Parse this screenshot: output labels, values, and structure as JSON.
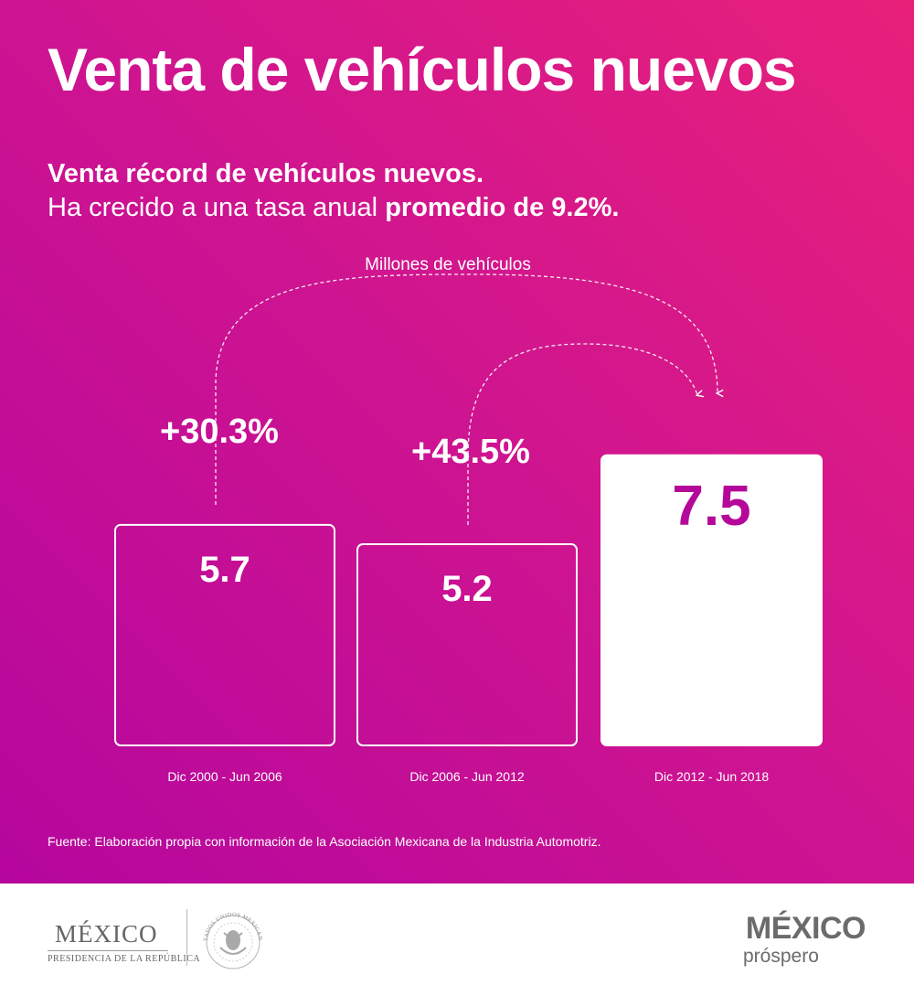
{
  "header": {
    "title": "Venta de vehículos nuevos",
    "subtitle_bold": "Venta récord de vehículos nuevos.",
    "subtitle_regular": "Ha crecido a una tasa anual ",
    "subtitle_highlight": "promedio de 9.2%."
  },
  "chart_data": {
    "type": "bar",
    "title": "Venta de vehículos nuevos",
    "unit_label": "Millones de vehículos",
    "categories": [
      "Dic 2000 - Jun 2006",
      "Dic 2006 - Jun 2012",
      "Dic 2012 - Jun 2018"
    ],
    "values": [
      5.7,
      5.2,
      7.5
    ],
    "value_labels": [
      "5.7",
      "5.2",
      "7.5"
    ],
    "highlight_index": 2,
    "annotations": [
      {
        "label": "+30.3%",
        "from_index": 0,
        "to_index": 2
      },
      {
        "label": "+43.5%",
        "from_index": 1,
        "to_index": 2
      }
    ],
    "colors": {
      "bar_outline": "#ffffff",
      "highlight_fill": "#ffffff",
      "highlight_text": "#b5079a",
      "text": "#ffffff"
    }
  },
  "source": "Fuente: Elaboración propia con información de la Asociación Mexicana de la Industria Automotriz.",
  "footer": {
    "gob_name": "MÉXICO",
    "gob_sub": "PRESIDENCIA DE LA REPÚBLICA",
    "seal_text": "ESTADOS UNIDOS MEXICANOS",
    "brand_name": "MÉXICO",
    "brand_sub": "próspero"
  }
}
